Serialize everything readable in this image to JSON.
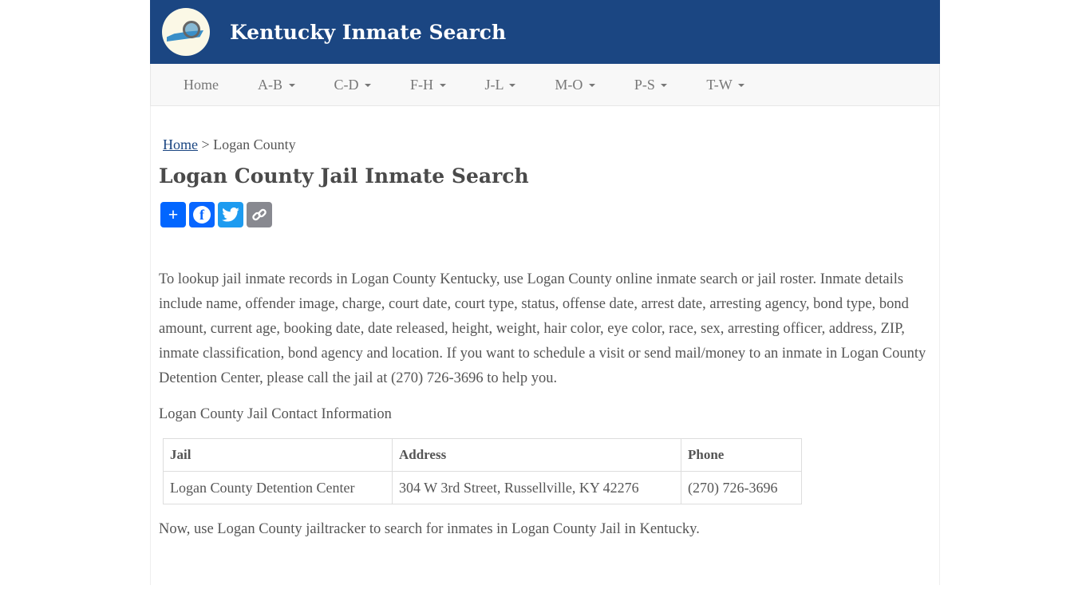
{
  "site": {
    "title": "Kentucky Inmate Search",
    "logo": "kentucky-map-magnifier-logo"
  },
  "nav": [
    {
      "label": "Home",
      "dropdown": false
    },
    {
      "label": "A-B",
      "dropdown": true
    },
    {
      "label": "C-D",
      "dropdown": true
    },
    {
      "label": "F-H",
      "dropdown": true
    },
    {
      "label": "J-L",
      "dropdown": true
    },
    {
      "label": "M-O",
      "dropdown": true
    },
    {
      "label": "P-S",
      "dropdown": true
    },
    {
      "label": "T-W",
      "dropdown": true
    }
  ],
  "breadcrumb": {
    "home": "Home",
    "sep": ">",
    "current": "Logan County"
  },
  "page_title": "Logan County Jail Inmate Search",
  "share": {
    "colors": {
      "share": "#0166ff",
      "facebook": "#0866ff",
      "twitter": "#1d9bf0",
      "copy": "#888990"
    }
  },
  "intro": "To lookup jail inmate records in Logan County Kentucky, use Logan County online inmate search or jail roster. Inmate details include name, offender image, charge, court date, court type, status, offense date, arrest date, arresting agency, bond type, bond amount, current age, booking date, date released, height, weight, hair color, eye color, race, sex, arresting officer, address, ZIP, inmate classification, bond agency and location. If you want to schedule a visit or send mail/money to an inmate in Logan County Detention Center, please call the jail at (270) 726-3696 to help you.",
  "contact_heading": "Logan County Jail Contact Information",
  "table": {
    "headers": [
      "Jail",
      "Address",
      "Phone"
    ],
    "rows": [
      [
        "Logan County Detention Center",
        "304 W 3rd Street, Russellville, KY 42276",
        "(270) 726-3696"
      ]
    ]
  },
  "outro": "Now, use Logan County jailtracker to search for inmates in Logan County Jail in Kentucky."
}
